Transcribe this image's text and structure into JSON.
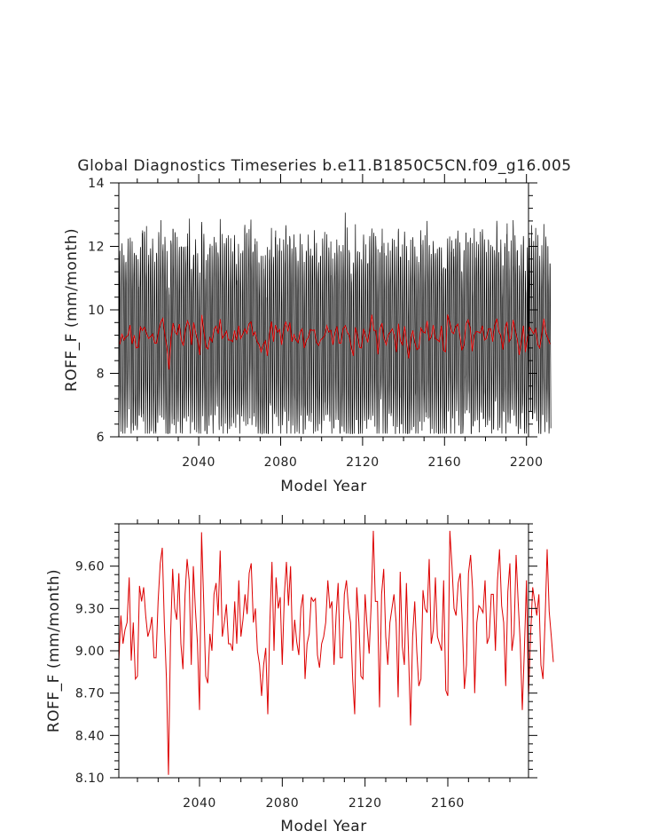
{
  "chart_data": [
    {
      "type": "line",
      "title": "Global Diagnostics Timeseries b.e11.B1850C5CN.f09_g16.005",
      "xlabel": "Model Year",
      "ylabel": "ROFF_F (mm/month)",
      "xlim": [
        2001,
        2201
      ],
      "ylim": [
        6,
        14
      ],
      "xticks": [
        2040,
        2080,
        2120,
        2160,
        2200
      ],
      "yticks": [
        6,
        8,
        10,
        12,
        14
      ],
      "grid": false,
      "series": [
        {
          "key": "monthly",
          "color": "#000000",
          "resolution": "monthly",
          "annual_cycle_range": [
            7.0,
            12.5
          ],
          "min": 6.1,
          "max": 13.9
        },
        {
          "key": "annual",
          "color": "#dd0000",
          "resolution": "annual",
          "values_from_panel": 2
        }
      ]
    },
    {
      "type": "line",
      "title": "",
      "xlabel": "Model Year",
      "ylabel": "ROFF_F (mm/month)",
      "xlim": [
        2001,
        2199
      ],
      "ylim": [
        8.1,
        9.9
      ],
      "xticks": [
        2040,
        2080,
        2120,
        2160
      ],
      "yticks": [
        8.1,
        8.4,
        8.7,
        9.0,
        9.3,
        9.6
      ],
      "ytick_labels": [
        "8.10",
        "8.40",
        "8.70",
        "9.00",
        "9.30",
        "9.60"
      ],
      "grid": false,
      "series": [
        {
          "key": "annual",
          "color": "#dd0000",
          "x_start": 2001,
          "values": [
            8.92,
            9.25,
            9.05,
            9.15,
            9.2,
            9.52,
            8.93,
            9.2,
            8.8,
            8.82,
            9.46,
            9.35,
            9.45,
            9.25,
            9.1,
            9.15,
            9.24,
            8.95,
            8.95,
            9.35,
            9.62,
            9.73,
            9.2,
            8.8,
            8.12,
            9.1,
            9.58,
            9.3,
            9.22,
            9.55,
            9.05,
            8.87,
            9.4,
            9.65,
            9.5,
            8.9,
            9.6,
            9.3,
            9.05,
            8.58,
            9.84,
            9.35,
            8.82,
            8.77,
            9.12,
            9.0,
            9.4,
            9.48,
            9.25,
            9.71,
            9.1,
            9.2,
            9.33,
            9.05,
            9.05,
            9.0,
            9.35,
            9.05,
            9.5,
            9.1,
            9.22,
            9.4,
            9.26,
            9.55,
            9.62,
            9.2,
            9.3,
            9.0,
            8.9,
            8.68,
            8.9,
            9.02,
            8.55,
            9.2,
            9.63,
            9.0,
            9.52,
            9.3,
            9.38,
            8.9,
            9.4,
            9.63,
            9.32,
            9.6,
            9.0,
            9.22,
            9.06,
            8.97,
            9.3,
            9.4,
            8.8,
            9.05,
            9.12,
            9.38,
            9.35,
            9.37,
            8.97,
            8.88,
            9.05,
            9.1,
            9.2,
            9.5,
            9.3,
            9.35,
            8.9,
            9.25,
            9.48,
            8.95,
            8.95,
            9.4,
            9.5,
            9.3,
            9.2,
            8.8,
            8.55,
            9.45,
            9.2,
            8.82,
            8.8,
            9.4,
            9.17,
            8.98,
            9.35,
            9.85,
            9.35,
            9.35,
            8.6,
            9.4,
            9.58,
            9.1,
            8.9,
            9.2,
            9.3,
            9.4,
            9.2,
            8.67,
            9.56,
            9.03,
            8.9,
            9.48,
            8.98,
            8.47,
            9.1,
            9.35,
            9.0,
            8.75,
            8.8,
            9.43,
            9.3,
            9.27,
            9.65,
            9.05,
            9.15,
            9.52,
            9.1,
            9.05,
            9.0,
            9.5,
            8.72,
            8.68,
            9.85,
            9.6,
            9.3,
            9.25,
            9.48,
            9.55,
            9.2,
            8.73,
            8.9,
            9.55,
            9.68,
            9.43,
            8.7,
            9.2,
            9.32,
            9.3,
            9.27,
            9.5,
            9.05,
            9.1,
            9.4,
            9.4,
            9.0,
            9.5,
            9.72,
            9.32,
            9.2,
            8.75,
            9.42,
            9.62,
            9.0,
            9.12,
            9.68,
            9.35,
            9.05,
            8.58,
            9.0,
            9.5,
            8.67,
            9.1,
            9.45,
            9.35,
            9.25,
            9.4,
            8.9,
            8.8,
            9.22,
            9.72,
            9.28,
            9.1,
            8.92
          ]
        }
      ]
    }
  ]
}
